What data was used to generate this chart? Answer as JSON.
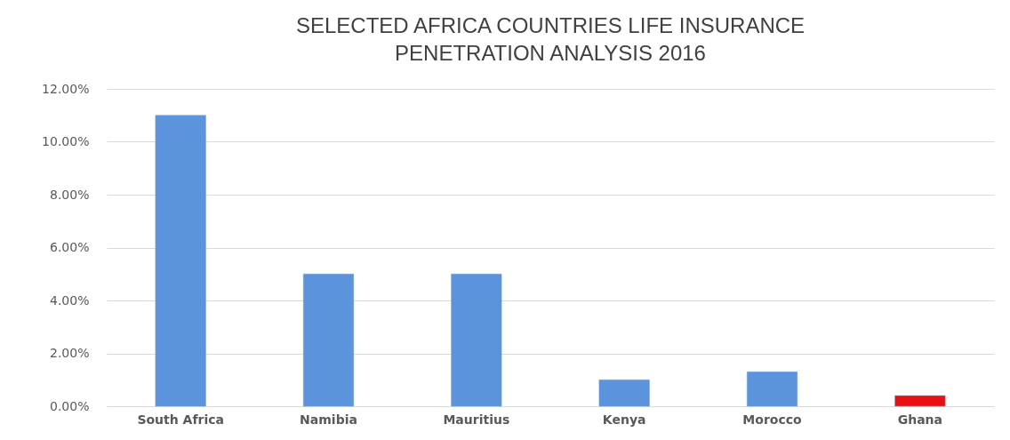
{
  "chart_data": {
    "type": "bar",
    "title": "SELECTED AFRICA COUNTRIES LIFE INSURANCE PENETRATION ANALYSIS 2016",
    "categories": [
      "South Africa",
      "Namibia",
      "Mauritius",
      "Kenya",
      "Morocco",
      "Ghana"
    ],
    "values": [
      11.0,
      5.0,
      5.0,
      1.0,
      1.3,
      0.4
    ],
    "colors": [
      "#5b93dc",
      "#5b93dc",
      "#5b93dc",
      "#5b93dc",
      "#5b93dc",
      "#e81010"
    ],
    "ylim": [
      0,
      12
    ],
    "yticks": [
      {
        "value": 0,
        "label": "0.00%"
      },
      {
        "value": 2,
        "label": "2.00%"
      },
      {
        "value": 4,
        "label": "4.00%"
      },
      {
        "value": 6,
        "label": "6.00%"
      },
      {
        "value": 8,
        "label": "8.00%"
      },
      {
        "value": 10,
        "label": "10.00%"
      },
      {
        "value": 12,
        "label": "12.00%"
      }
    ],
    "grid": "y",
    "legend": false
  }
}
